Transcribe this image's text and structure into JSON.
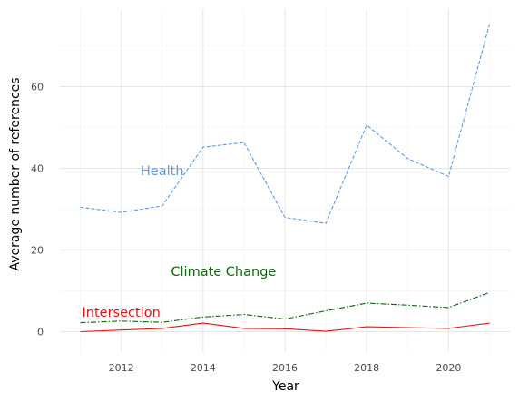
{
  "chart_data": {
    "type": "line",
    "xlabel": "Year",
    "ylabel": "Average number of references",
    "xlim": [
      2010.5,
      2021.5
    ],
    "ylim": [
      -5,
      79
    ],
    "x_ticks": [
      2012,
      2014,
      2016,
      2018,
      2020
    ],
    "y_ticks": [
      0,
      20,
      40,
      60
    ],
    "grid": true,
    "legend": "none",
    "x": [
      2011,
      2012,
      2013,
      2014,
      2015,
      2016,
      2017,
      2018,
      2019,
      2020,
      2021
    ],
    "series": [
      {
        "name": "Health",
        "color": "#5b9bf0",
        "dash": "dashed",
        "values": [
          30.5,
          29.2,
          30.8,
          45.2,
          46.3,
          28.0,
          26.5,
          50.6,
          42.4,
          38.0,
          75.3
        ],
        "label_at": [
          2013,
          39.5
        ]
      },
      {
        "name": "Climate Change",
        "color": "#0a6b0a",
        "dash": "dashdot",
        "values": [
          2.2,
          2.6,
          2.3,
          3.6,
          4.2,
          3.1,
          5.1,
          7.0,
          6.5,
          5.9,
          9.6
        ],
        "label_at": [
          2014.5,
          14.8
        ]
      },
      {
        "name": "Intersection",
        "color": "#ee1111",
        "dash": "solid",
        "values": [
          0.0,
          0.4,
          0.8,
          2.1,
          0.8,
          0.7,
          0.1,
          1.2,
          1.0,
          0.8,
          2.1
        ],
        "label_at": [
          2012,
          4.8
        ]
      }
    ]
  }
}
